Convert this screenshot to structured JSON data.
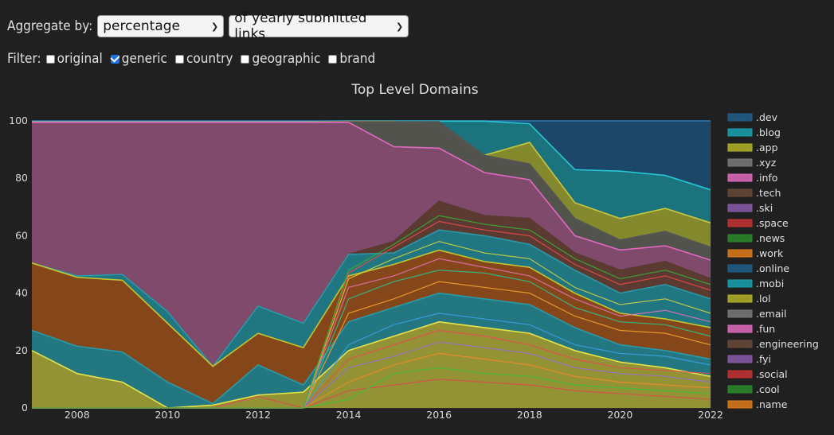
{
  "controls": {
    "aggregate_label": "Aggregate by:",
    "aggregate_value": "percentage",
    "of_value": "of yearly submitted links",
    "filter_label": "Filter:",
    "filters": [
      {
        "label": "original",
        "checked": false
      },
      {
        "label": "generic",
        "checked": true
      },
      {
        "label": "country",
        "checked": false
      },
      {
        "label": "geographic",
        "checked": false
      },
      {
        "label": "brand",
        "checked": false
      }
    ]
  },
  "chart_data": {
    "type": "area",
    "stacked": true,
    "title": "Top Level Domains",
    "xlabel": "",
    "ylabel": "",
    "xlim": [
      2007,
      2022
    ],
    "ylim": [
      0,
      100
    ],
    "x_ticks": [
      2008,
      2010,
      2012,
      2014,
      2016,
      2018,
      2020,
      2022
    ],
    "y_ticks": [
      0,
      20,
      40,
      60,
      80,
      100
    ],
    "grid": true,
    "legend_position": "right",
    "x": [
      2007,
      2008,
      2009,
      2010,
      2011,
      2012,
      2013,
      2014,
      2015,
      2016,
      2017,
      2018,
      2019,
      2020,
      2021,
      2022
    ],
    "bands": [
      {
        "color": "#e6e34a",
        "fill": "#9a9530",
        "top": [
          20,
          12,
          9,
          0,
          1,
          4.5,
          5.5,
          20,
          25,
          30,
          28,
          26,
          20,
          16,
          14,
          11
        ]
      },
      {
        "color": "#2a9aa8",
        "fill": "#1e7a86",
        "top": [
          27,
          21.5,
          19.5,
          9,
          1.5,
          15,
          8,
          30,
          35,
          40,
          38,
          36,
          28,
          22,
          20,
          17
        ]
      },
      {
        "color": "#c4c431",
        "fill": "#8b4513",
        "top": [
          50.5,
          45.5,
          44.5,
          29.5,
          14.5,
          26,
          21,
          46,
          50,
          55,
          51,
          49,
          40,
          33,
          31,
          28
        ]
      },
      {
        "color": "#2a9aa8",
        "fill": "#1e7a86",
        "top": [
          50.5,
          46,
          46.5,
          33.5,
          14.5,
          35.5,
          29.5,
          53.5,
          54,
          62,
          60,
          57,
          48,
          40,
          43,
          38
        ]
      },
      {
        "color": "#5a3a2e",
        "fill": "#5a3a2e",
        "top": [
          50.5,
          46,
          46.5,
          33.5,
          14.5,
          35.5,
          29.5,
          53.5,
          58,
          72,
          67,
          66,
          54,
          48,
          51,
          45
        ]
      },
      {
        "color": "#e06ac0",
        "fill": "#824a6e",
        "top": [
          99.5,
          99.5,
          99.5,
          99.5,
          99.5,
          99.5,
          99.5,
          99.5,
          91,
          90.5,
          82,
          79.5,
          60,
          55,
          56.5,
          51.5
        ]
      },
      {
        "color": "#555555",
        "fill": "#505050",
        "top": [
          99.5,
          99.5,
          99.5,
          99.5,
          99.5,
          99.5,
          99.5,
          99.7,
          99.7,
          99.7,
          88,
          85,
          66,
          58.5,
          61.5,
          56
        ]
      },
      {
        "color": "#c8c840",
        "fill": "#8a8a2a",
        "top": [
          99.6,
          99.6,
          99.6,
          99.6,
          99.6,
          99.6,
          99.6,
          99.8,
          99.8,
          98.5,
          88,
          92.5,
          71.5,
          66,
          69.5,
          64.5
        ]
      },
      {
        "color": "#26c6d4",
        "fill": "#1b7680",
        "top": [
          99.7,
          99.7,
          99.7,
          99.7,
          99.7,
          99.7,
          99.7,
          99.9,
          99.9,
          99.9,
          99.9,
          99,
          83,
          82.5,
          81,
          76
        ]
      },
      {
        "color": "#2a7ab8",
        "fill": "#1e4a6e",
        "top": [
          100,
          100,
          100,
          100,
          100,
          100,
          100,
          100,
          100,
          100,
          100,
          100,
          100,
          100,
          100,
          100
        ]
      }
    ],
    "thin_lines": [
      {
        "color": "#d94c4c",
        "top": [
          0,
          0,
          0,
          0,
          0,
          4,
          0,
          6,
          8,
          10,
          9,
          8,
          6,
          5,
          4,
          3
        ]
      },
      {
        "color": "#3fbf3f",
        "top": [
          0,
          0,
          0,
          0,
          0,
          0,
          0,
          3,
          12,
          14,
          12,
          11,
          8,
          7,
          6,
          5
        ]
      },
      {
        "color": "#f08a2a",
        "top": [
          0,
          0,
          0,
          0,
          0,
          0,
          0,
          9,
          15,
          19,
          17,
          15,
          11,
          9,
          8,
          7
        ]
      },
      {
        "color": "#9a6acc",
        "top": [
          0,
          0,
          0,
          0,
          0,
          0,
          0,
          14,
          18,
          23,
          21,
          19,
          14,
          12,
          11,
          9
        ]
      },
      {
        "color": "#e05050",
        "top": [
          0,
          0,
          0,
          0,
          0,
          0,
          0,
          17,
          22,
          27,
          25,
          22,
          17,
          14,
          13,
          12
        ]
      },
      {
        "color": "#3aa0e0",
        "top": [
          0,
          0,
          0,
          0,
          0,
          0,
          0,
          22,
          29,
          33,
          31,
          29,
          22,
          19,
          18,
          15
        ]
      },
      {
        "color": "#f0a030",
        "top": [
          0,
          0,
          0,
          0,
          0,
          0,
          0,
          33,
          38,
          44,
          42,
          40,
          32,
          27,
          26,
          22
        ]
      },
      {
        "color": "#2fbf8f",
        "top": [
          0,
          0,
          0,
          0,
          0,
          0,
          0,
          38,
          44,
          48,
          47,
          44,
          35,
          30,
          29,
          25
        ]
      },
      {
        "color": "#e070b0",
        "top": [
          0,
          0,
          0,
          0,
          0,
          0,
          0,
          42,
          46,
          52,
          49,
          46,
          38,
          32,
          34,
          30
        ]
      },
      {
        "color": "#d0d040",
        "top": [
          0,
          0,
          0,
          0,
          0,
          0,
          0,
          45,
          52,
          58,
          54,
          52,
          42,
          36,
          38,
          33
        ]
      },
      {
        "color": "#e84a4a",
        "top": [
          0,
          0,
          0,
          0,
          0,
          0,
          0,
          47,
          56,
          65,
          62,
          60,
          50,
          43,
          46,
          41
        ]
      },
      {
        "color": "#34b034",
        "top": [
          0,
          0,
          0,
          0,
          0,
          0,
          0,
          48,
          57,
          67,
          64,
          62,
          52,
          45,
          48,
          43
        ]
      }
    ],
    "legend": [
      {
        "label": ".dev",
        "color": "#1f5f8a"
      },
      {
        "label": ".blog",
        "color": "#17a2b0"
      },
      {
        "label": ".app",
        "color": "#b4b428"
      },
      {
        "label": ".xyz",
        "color": "#7a7a7a"
      },
      {
        "label": ".info",
        "color": "#e06ac0"
      },
      {
        "label": ".tech",
        "color": "#6a4a3a"
      },
      {
        "label": ".ski",
        "color": "#8a5aaa"
      },
      {
        "label": ".space",
        "color": "#c83232"
      },
      {
        "label": ".news",
        "color": "#2a8a2a"
      },
      {
        "label": ".work",
        "color": "#e07a1a"
      },
      {
        "label": ".online",
        "color": "#1f5f8a"
      },
      {
        "label": ".mobi",
        "color": "#17a2b0"
      },
      {
        "label": ".lol",
        "color": "#b4b428"
      },
      {
        "label": ".email",
        "color": "#7a7a7a"
      },
      {
        "label": ".fun",
        "color": "#e06ac0"
      },
      {
        "label": ".engineering",
        "color": "#6a4a3a"
      },
      {
        "label": ".fyi",
        "color": "#8a5aaa"
      },
      {
        "label": ".social",
        "color": "#c83232"
      },
      {
        "label": ".cool",
        "color": "#2a8a2a"
      },
      {
        "label": ".name",
        "color": "#e07a1a"
      }
    ]
  }
}
